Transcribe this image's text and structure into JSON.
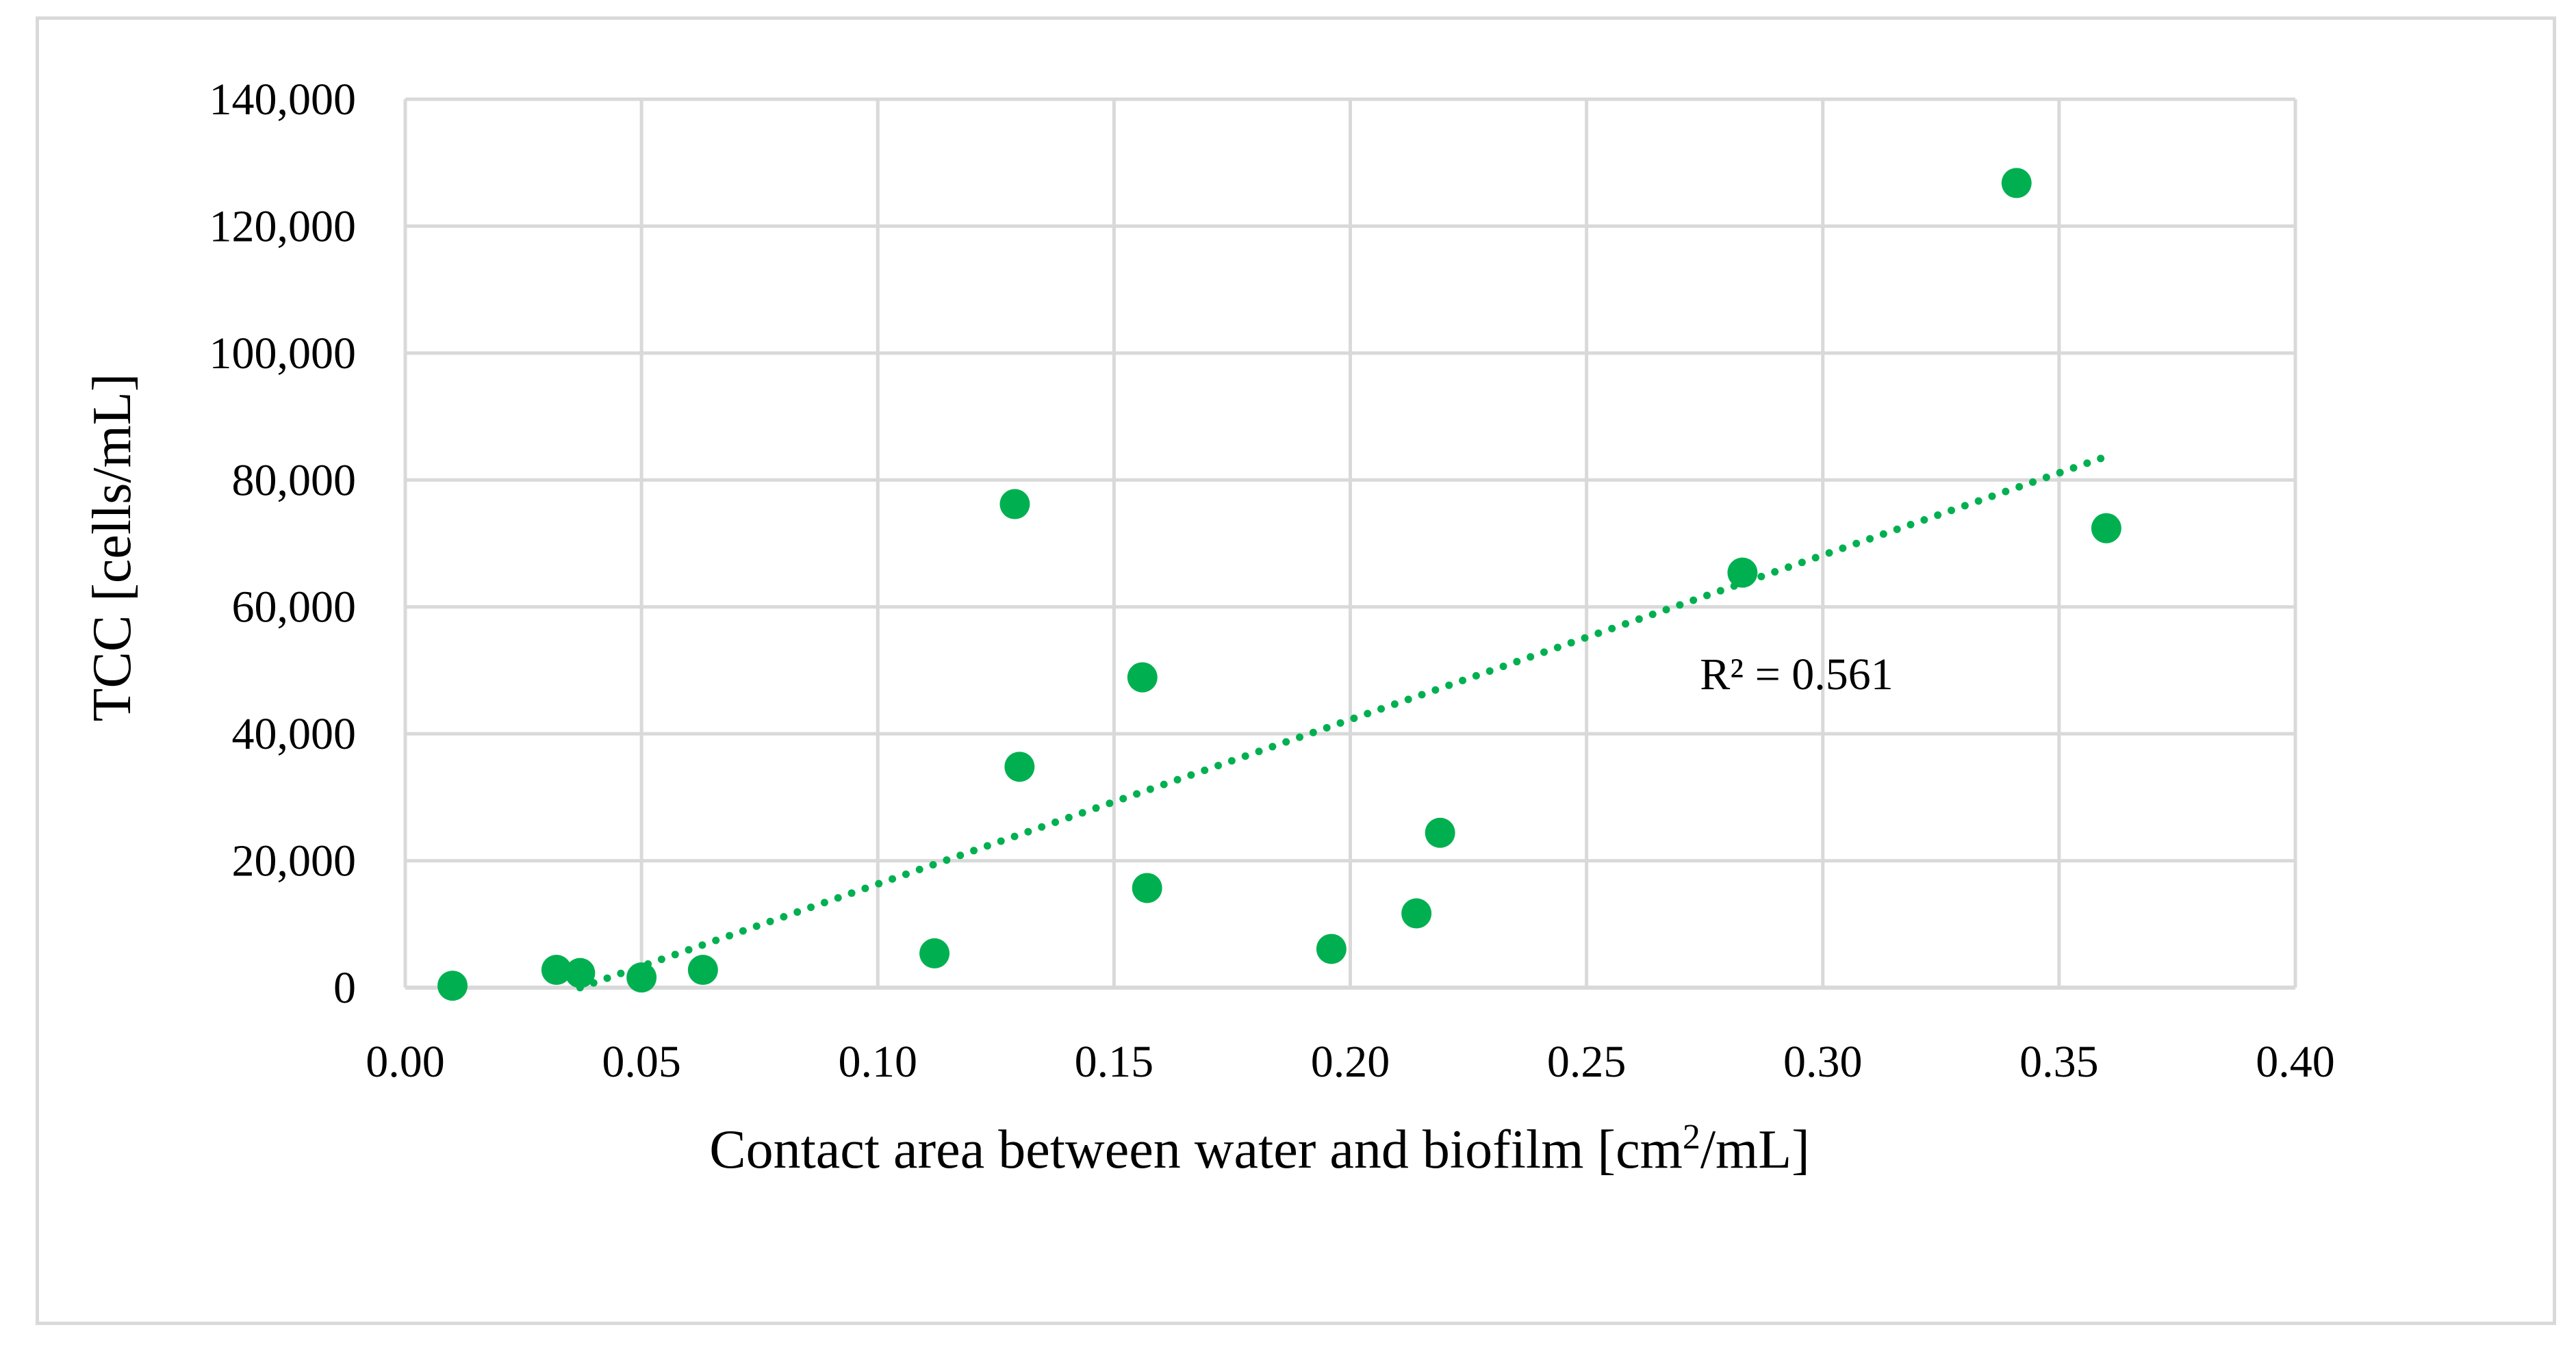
{
  "chart_data": {
    "type": "scatter",
    "title": "",
    "xlabel": "Contact area between water and biofilm [cm²/mL]",
    "xlabel_parts": {
      "pre": "Contact area between water and biofilm [cm",
      "sup": "2",
      "post": "/mL]"
    },
    "ylabel": "TCC [cells/mL]",
    "xlim": [
      0,
      0.4
    ],
    "ylim": [
      0,
      140000
    ],
    "xticks": [
      0,
      0.05,
      0.1,
      0.15,
      0.2,
      0.25,
      0.3,
      0.35,
      0.4
    ],
    "xtick_labels": [
      "0.00",
      "0.05",
      "0.10",
      "0.15",
      "0.20",
      "0.25",
      "0.30",
      "0.35",
      "0.40"
    ],
    "yticks": [
      0,
      20000,
      40000,
      60000,
      80000,
      100000,
      120000,
      140000
    ],
    "ytick_labels": [
      "0",
      "20,000",
      "40,000",
      "60,000",
      "80,000",
      "100,000",
      "120,000",
      "140,000"
    ],
    "grid": true,
    "series": [
      {
        "name": "TCC",
        "color": "#00b050",
        "points": [
          {
            "x": 0.01,
            "y": 300
          },
          {
            "x": 0.032,
            "y": 2800
          },
          {
            "x": 0.037,
            "y": 2300
          },
          {
            "x": 0.05,
            "y": 1600
          },
          {
            "x": 0.063,
            "y": 2800
          },
          {
            "x": 0.112,
            "y": 5400
          },
          {
            "x": 0.129,
            "y": 76200
          },
          {
            "x": 0.13,
            "y": 34800
          },
          {
            "x": 0.156,
            "y": 48900
          },
          {
            "x": 0.157,
            "y": 15700
          },
          {
            "x": 0.196,
            "y": 6100
          },
          {
            "x": 0.214,
            "y": 11700
          },
          {
            "x": 0.219,
            "y": 24400
          },
          {
            "x": 0.283,
            "y": 65400
          },
          {
            "x": 0.341,
            "y": 126800
          },
          {
            "x": 0.36,
            "y": 72400
          }
        ]
      }
    ],
    "trendline": {
      "type": "linear",
      "style": "dotted",
      "color": "#00b050",
      "x_start": 0.037,
      "y_start": 0,
      "x_end": 0.36,
      "y_end": 83700
    },
    "annotation": {
      "text": "R² = 0.561",
      "x": 0.274,
      "y": 47000
    }
  }
}
